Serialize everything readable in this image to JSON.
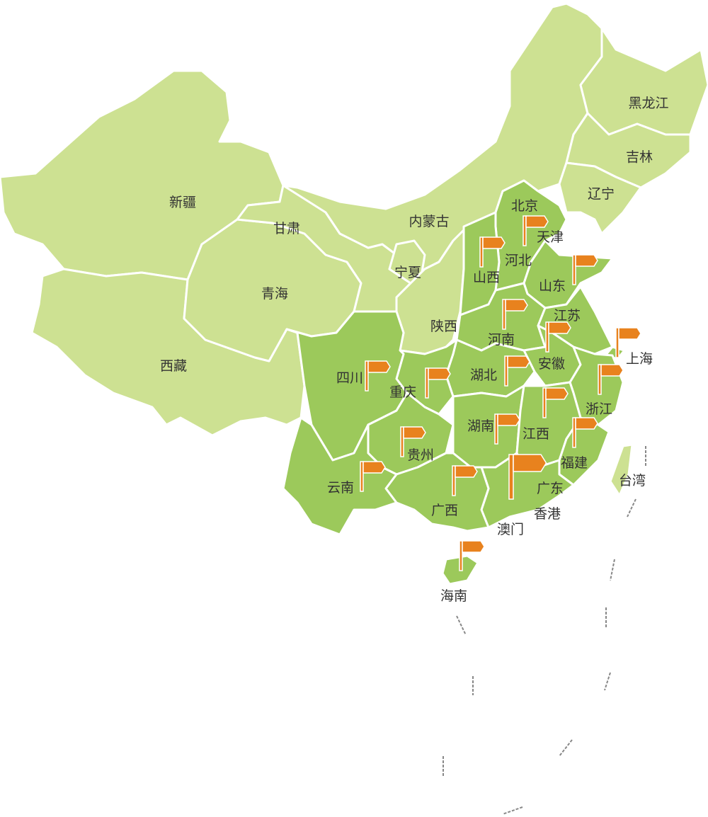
{
  "map": {
    "colors": {
      "unmarked_region": "#cde192",
      "marked_region": "#9cc95b",
      "flag": "#e8821e",
      "border": "#ffffff"
    },
    "provinces": [
      "新疆",
      "西藏",
      "青海",
      "甘肃",
      "内蒙古",
      "宁夏",
      "陕西",
      "黑龙江",
      "吉林",
      "辽宁",
      "北京",
      "天津",
      "河北",
      "山西",
      "山东",
      "河南",
      "江苏",
      "安徽",
      "上海",
      "浙江",
      "湖北",
      "重庆",
      "四川",
      "贵州",
      "湖南",
      "江西",
      "福建",
      "广东",
      "广西",
      "云南",
      "海南",
      "台湾",
      "香港",
      "澳门"
    ]
  }
}
